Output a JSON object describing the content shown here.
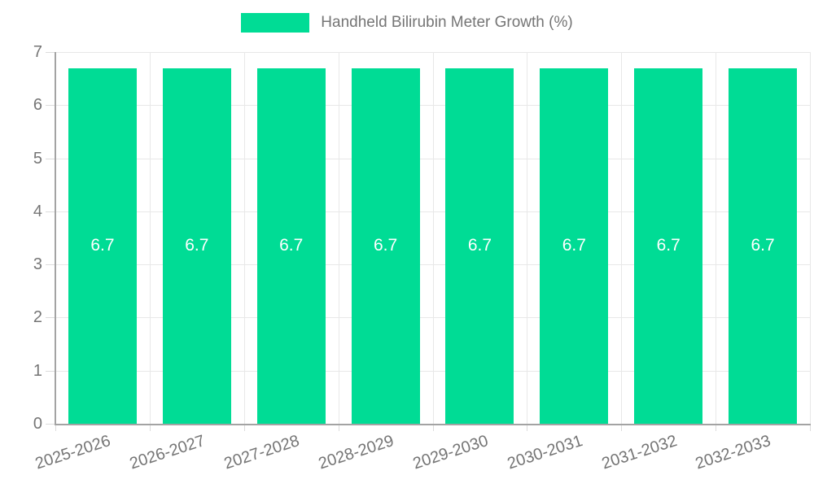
{
  "colors": {
    "bar": "#00DC95",
    "grid": "#e8e8e8",
    "axis": "#a3a3a3",
    "tick": "#dcdcdc",
    "tick_text": "#757575",
    "bar_label_text": "#ffffff"
  },
  "chart_data": {
    "type": "bar",
    "title": "Handheld Bilirubin Meter Growth (%)",
    "categories": [
      "2025-2026",
      "2026-2027",
      "2027-2028",
      "2028-2029",
      "2029-2030",
      "2030-2031",
      "2031-2032",
      "2032-2033"
    ],
    "values": [
      6.7,
      6.7,
      6.7,
      6.7,
      6.7,
      6.7,
      6.7,
      6.7
    ],
    "bar_value_labels": [
      "6.7",
      "6.7",
      "6.7",
      "6.7",
      "6.7",
      "6.7",
      "6.7",
      "6.7"
    ],
    "xlabel": "",
    "ylabel": "",
    "ylim": [
      0,
      7
    ],
    "yticks": [
      0,
      1,
      2,
      3,
      4,
      5,
      6,
      7
    ],
    "grid": true,
    "legend_position": "top"
  }
}
